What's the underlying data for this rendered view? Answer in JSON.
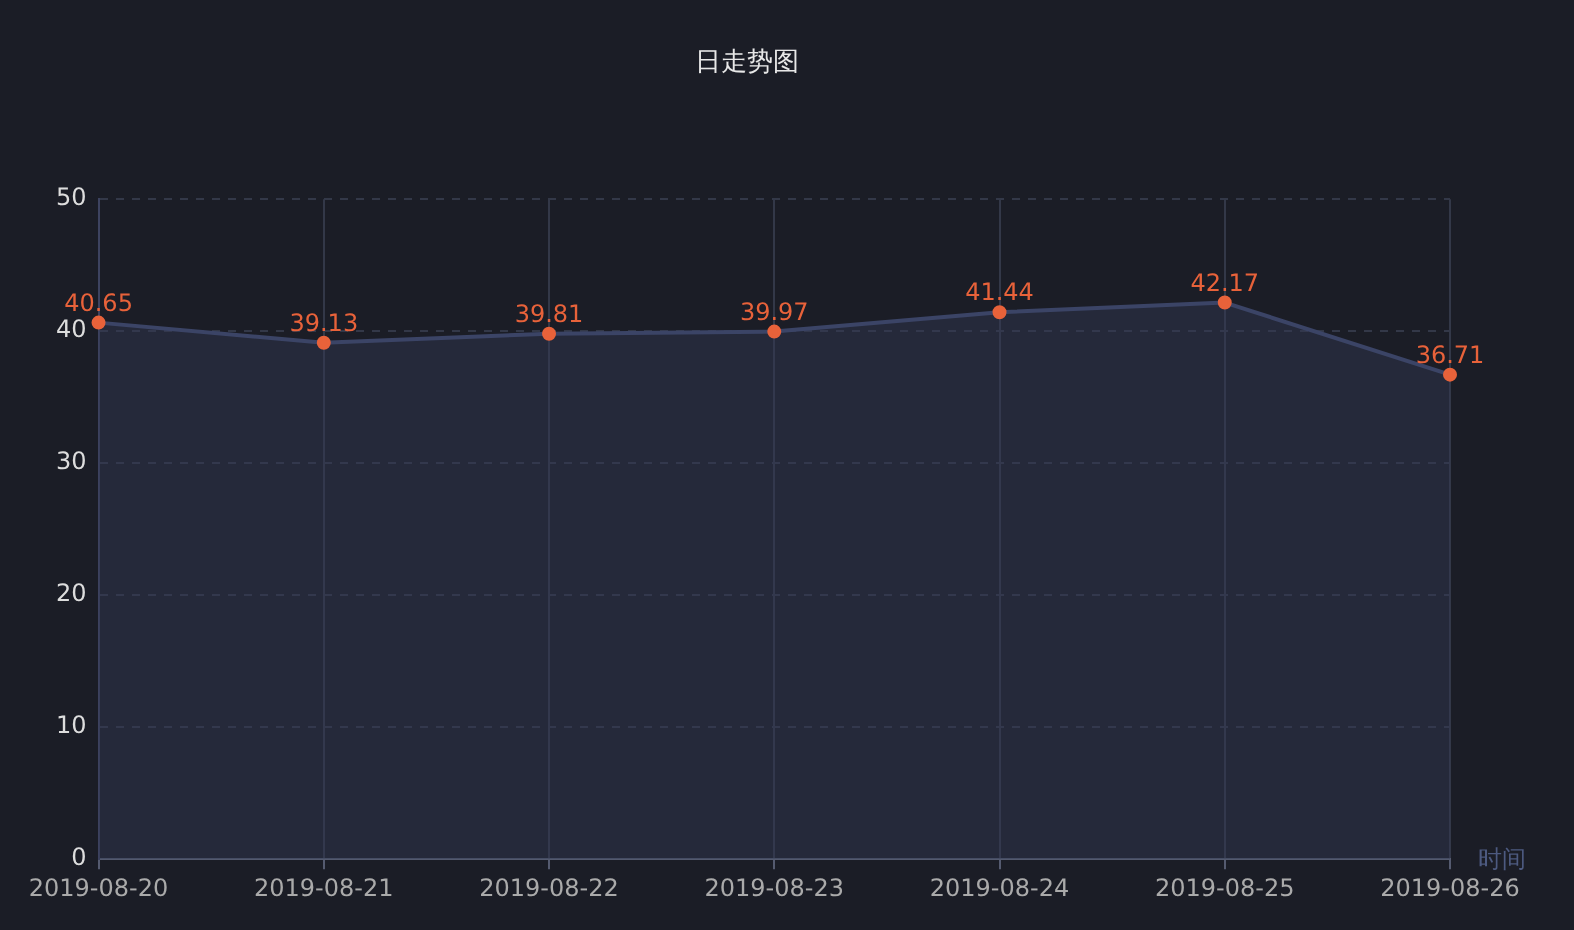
{
  "chart_data": {
    "type": "area",
    "title": "日走势图",
    "xlabel": "时间",
    "categories": [
      "2019-08-20",
      "2019-08-21",
      "2019-08-22",
      "2019-08-23",
      "2019-08-24",
      "2019-08-25",
      "2019-08-26"
    ],
    "series": [
      {
        "color": "#3b4466",
        "values": [
          40.65,
          39.13,
          39.81,
          39.97,
          41.44,
          42.17,
          36.71
        ]
      }
    ],
    "ylim": [
      0,
      50
    ],
    "yticks": [
      0,
      10,
      20,
      30,
      40,
      50
    ],
    "grid": true,
    "legend": false,
    "marker": "circle",
    "data_labels": true
  }
}
